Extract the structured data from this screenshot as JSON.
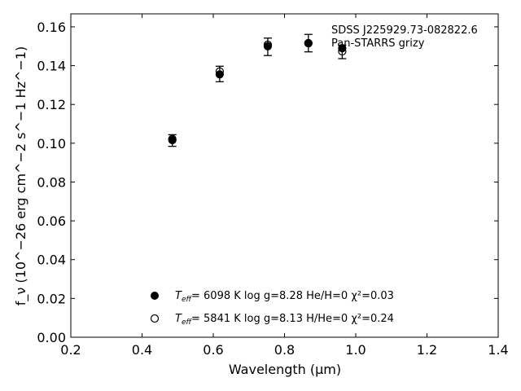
{
  "chart_data": {
    "type": "scatter",
    "xlabel": "Wavelength (μm)",
    "ylabel": "f_ν (10^−26 erg cm^−2 s^−1 Hz^−1)",
    "xlim": [
      0.2,
      1.4
    ],
    "ylim": [
      0.0,
      0.1667
    ],
    "xticks": [
      "0.2",
      "0.4",
      "0.6",
      "0.8",
      "1.0",
      "1.2",
      "1.4"
    ],
    "yticks": [
      "0.00",
      "0.02",
      "0.04",
      "0.06",
      "0.08",
      "0.10",
      "0.12",
      "0.14",
      "0.16"
    ],
    "annotation": {
      "line1": "SDSS J225929.73-082822.6",
      "line2": "Pan-STARRS grizy"
    },
    "observed": {
      "x": [
        0.485,
        0.618,
        0.753,
        0.867,
        0.962
      ],
      "y": [
        0.1014,
        0.1357,
        0.1497,
        0.1516,
        0.1471
      ],
      "err": [
        0.003,
        0.004,
        0.0045,
        0.0045,
        0.0035
      ]
    },
    "series": [
      {
        "marker": "filled-circle",
        "label_teff": "6098 K",
        "label_logg": "log g=8.28",
        "label_comp": "He/H=0",
        "label_chi": "χ²=0.03",
        "x": [
          0.485,
          0.618,
          0.753,
          0.867,
          0.962
        ],
        "y": [
          0.1016,
          0.1355,
          0.15,
          0.1516,
          0.149
        ]
      },
      {
        "marker": "open-circle",
        "label_teff": "5841 K",
        "label_logg": "log g=8.13",
        "label_comp": "H/He=0",
        "label_chi": "χ²=0.24",
        "x": [
          0.485,
          0.618,
          0.753,
          0.867,
          0.962
        ],
        "y": [
          0.1022,
          0.137,
          0.1508,
          0.1516,
          0.1474
        ]
      }
    ]
  }
}
